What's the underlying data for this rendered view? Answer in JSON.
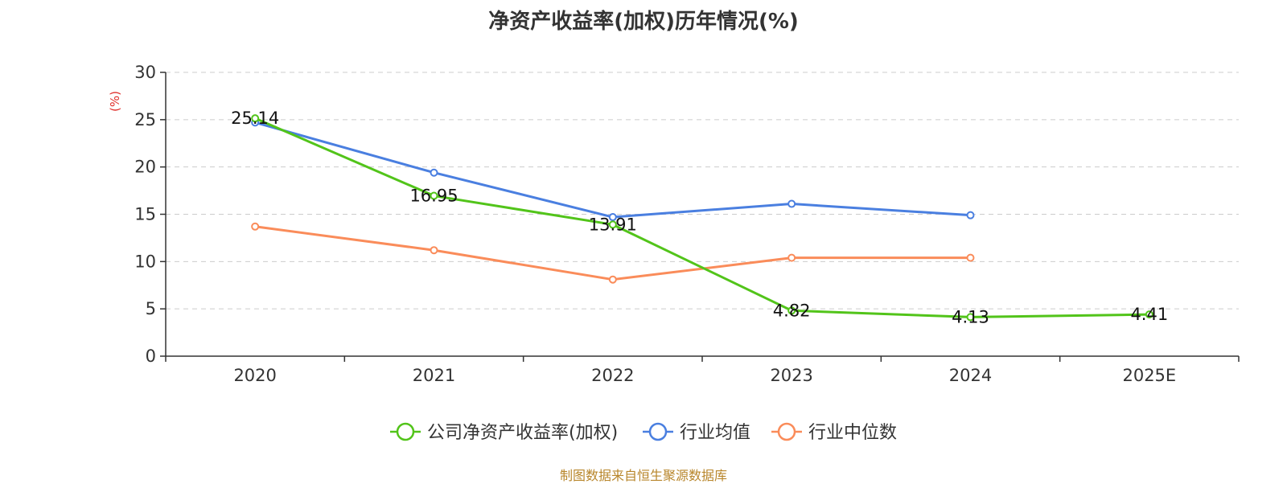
{
  "chart_data": {
    "type": "line",
    "title": "净资产收益率(加权)历年情况(%)",
    "ylabel": "(%)",
    "xlabel": "",
    "categories": [
      "2020",
      "2021",
      "2022",
      "2023",
      "2024",
      "2025E"
    ],
    "ylim": [
      0,
      30
    ],
    "yticks": [
      0,
      5,
      10,
      15,
      20,
      25,
      30
    ],
    "grid": true,
    "legend_position": "bottom-center",
    "series": [
      {
        "name": "公司净资产收益率(加权)",
        "color": "#52c41a",
        "values": [
          25.14,
          16.95,
          13.91,
          4.82,
          4.13,
          4.41
        ],
        "labels": [
          "25.14",
          "16.95",
          "13.91",
          "4.82",
          "4.13",
          "4.41"
        ]
      },
      {
        "name": "行业均值",
        "color": "#4a7fe0",
        "values": [
          24.7,
          19.4,
          14.7,
          16.1,
          14.9,
          null
        ]
      },
      {
        "name": "行业中位数",
        "color": "#fa8c5a",
        "values": [
          13.7,
          11.2,
          8.1,
          10.4,
          10.4,
          null
        ]
      }
    ],
    "source": "制图数据来自恒生聚源数据库"
  }
}
